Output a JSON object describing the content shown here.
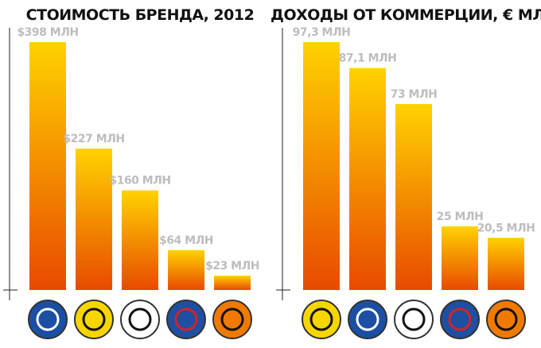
{
  "chart_data": [
    {
      "type": "bar",
      "title": "СТОИМОСТЬ БРЕНДА, 2012",
      "categories": [
        null,
        null,
        null,
        null,
        null
      ],
      "values": [
        398,
        227,
        160,
        64,
        23
      ],
      "value_labels": [
        "$398 МЛН",
        "$227 МЛН",
        "$160 МЛН",
        "$64 МЛН",
        "$23 МЛН"
      ],
      "color": [
        "#ffd200",
        "#e84a00"
      ]
    },
    {
      "type": "bar",
      "title": "ДОХОДЫ ОТ КОММЕРЦИИ, € МЛН",
      "categories": [
        null,
        null,
        null,
        null,
        null
      ],
      "values": [
        97.3,
        87.1,
        73,
        25,
        20.5
      ],
      "value_labels": [
        "97,3 МЛН",
        "87,1 МЛН",
        "73 МЛН",
        "25 МЛН",
        "20,5 МЛН"
      ],
      "color": [
        "#ffd200",
        "#e84a00"
      ]
    }
  ]
}
